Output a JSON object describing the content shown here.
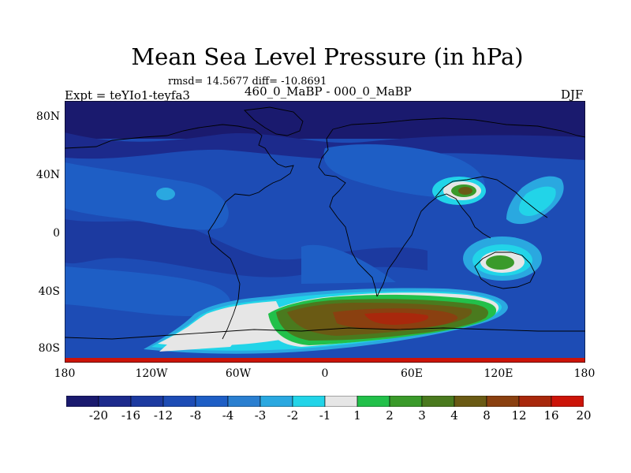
{
  "title": "Mean Sea Level Pressure (in hPa)",
  "stats": "rmsd= 14.5677 diff= -10.8691",
  "subtitle": "460_0_MaBP - 000_0_MaBP",
  "expt": "Expt = teYIo1-teyfa3",
  "season": "DJF",
  "lat_ticks": [
    "80N",
    "40N",
    "0",
    "40S",
    "80S"
  ],
  "lon_ticks": [
    "180",
    "120W",
    "60W",
    "0",
    "60E",
    "120E",
    "180"
  ],
  "colorbar": {
    "labels": [
      "-20",
      "-16",
      "-12",
      "-8",
      "-4",
      "-3",
      "-2",
      "-1",
      "1",
      "2",
      "3",
      "4",
      "8",
      "12",
      "16",
      "20"
    ],
    "colors": [
      "#1a1a6e",
      "#1c2a8c",
      "#1c3aa0",
      "#1d4cb5",
      "#1e5ec5",
      "#2a7fd0",
      "#2aa8e0",
      "#22d4e8",
      "#e6e6e6",
      "#22c04a",
      "#3a9a2a",
      "#4a7a1e",
      "#6a5a14",
      "#8a4010",
      "#a8280c",
      "#cc1408"
    ]
  },
  "colors": {
    "ocean_base": "#1d4cb5",
    "arctic": "#1c2a8c",
    "southern_anomaly_core": "#cc1408"
  }
}
